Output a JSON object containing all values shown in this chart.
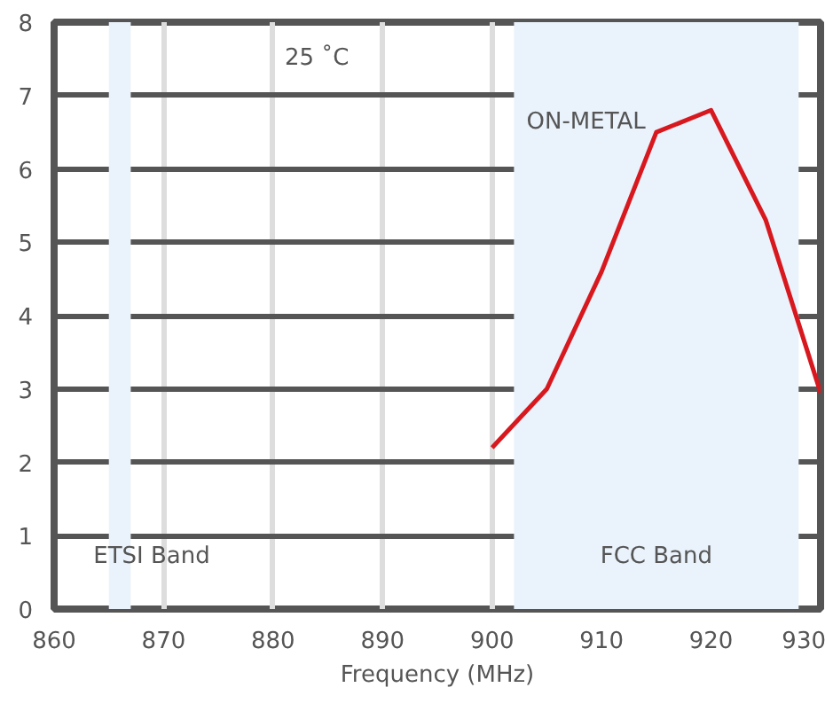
{
  "chart_data": {
    "type": "line",
    "xlabel": "Frequency (MHz)",
    "x": [
      900,
      905,
      910,
      915,
      920,
      925,
      930
    ],
    "series": [
      {
        "name": "ON-METAL",
        "color": "#d7191f",
        "values": [
          2.2,
          3.0,
          4.6,
          6.5,
          6.8,
          5.3,
          2.95
        ]
      }
    ],
    "xlim": [
      860,
      930
    ],
    "xticks": [
      860,
      870,
      880,
      890,
      900,
      910,
      920,
      930
    ],
    "ylim": [
      0,
      8
    ],
    "yticks": [
      0,
      1,
      2,
      3,
      4,
      5,
      6,
      7,
      8
    ],
    "grid": true,
    "marker": "none",
    "line_style": "solid",
    "bands": [
      {
        "axis": "x",
        "from": 865,
        "to": 867,
        "label": "ETSI Band",
        "color": "#eaf2fb"
      },
      {
        "axis": "x",
        "from": 902,
        "to": 928,
        "label": "FCC Band",
        "color": "#eaf2fb"
      }
    ],
    "annotations": [
      "25 ˚C"
    ]
  }
}
